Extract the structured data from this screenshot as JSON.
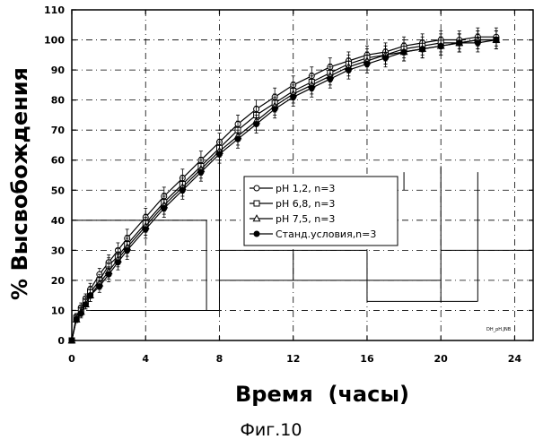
{
  "chart_data": {
    "type": "line",
    "title": "",
    "xlabel": "Время  (часы)",
    "ylabel": "% Высвобождения",
    "caption": "Фиг.10",
    "corner_note": "DH_pH.JNB",
    "xlim": [
      0,
      25
    ],
    "ylim": [
      0,
      110
    ],
    "xticks": [
      0,
      4,
      8,
      12,
      16,
      20,
      24
    ],
    "yticks": [
      0,
      10,
      20,
      30,
      40,
      50,
      60,
      70,
      80,
      90,
      100,
      110
    ],
    "grid": true,
    "legend_position": "center-right",
    "series": [
      {
        "name": "pH 1,2, n=3",
        "marker": "circle-open",
        "x": [
          0,
          0.25,
          0.5,
          0.75,
          1,
          1.5,
          2,
          2.5,
          3,
          4,
          5,
          6,
          7,
          8,
          9,
          10,
          11,
          12,
          13,
          14,
          15,
          16,
          17,
          18,
          19,
          20,
          21,
          22,
          23
        ],
        "values": [
          0,
          8,
          11,
          14,
          17,
          22,
          26,
          30,
          34,
          41,
          48,
          54,
          60,
          66,
          72,
          77,
          81,
          85,
          88,
          91,
          93,
          95,
          96,
          98,
          99,
          100,
          100,
          101,
          101
        ],
        "errors": [
          0,
          1,
          1.5,
          1.5,
          2,
          2,
          2.5,
          2.5,
          3,
          3,
          3,
          3,
          3,
          3,
          3,
          3,
          3,
          3,
          3,
          3,
          3,
          3,
          3,
          3,
          3,
          3,
          3,
          3,
          3
        ]
      },
      {
        "name": "pH 6,8, n=3",
        "marker": "square-open",
        "x": [
          0,
          0.25,
          0.5,
          0.75,
          1,
          1.5,
          2,
          2.5,
          3,
          4,
          5,
          6,
          7,
          8,
          9,
          10,
          11,
          12,
          13,
          14,
          15,
          16,
          17,
          18,
          19,
          20,
          21,
          22,
          23
        ],
        "values": [
          0,
          7.5,
          10,
          13,
          16,
          20,
          25,
          28,
          32,
          39,
          46,
          52,
          58,
          64,
          70,
          75,
          79,
          83,
          86,
          89,
          92,
          94,
          95,
          97,
          98,
          99,
          99,
          100,
          100
        ],
        "errors": [
          0,
          1,
          1.5,
          1.5,
          2,
          2,
          2.5,
          2.5,
          3,
          3,
          3,
          3,
          3,
          3,
          3,
          3,
          3,
          3,
          3,
          3,
          3,
          3,
          3,
          3,
          3,
          3,
          3,
          3,
          3
        ]
      },
      {
        "name": "pH 7,5, n=3",
        "marker": "triangle-open",
        "x": [
          0,
          0.25,
          0.5,
          0.75,
          1,
          1.5,
          2,
          2.5,
          3,
          4,
          5,
          6,
          7,
          8,
          9,
          10,
          11,
          12,
          13,
          14,
          15,
          16,
          17,
          18,
          19,
          20,
          21,
          22,
          23
        ],
        "values": [
          0,
          7,
          9.5,
          12,
          15,
          19,
          23,
          27,
          31,
          38,
          45,
          51,
          57,
          63,
          68,
          73,
          78,
          82,
          85,
          88,
          91,
          93,
          95,
          96,
          97,
          98,
          99,
          100,
          100
        ],
        "errors": [
          0,
          1,
          1.5,
          1.5,
          2,
          2,
          2.5,
          2.5,
          3,
          3,
          3,
          3,
          3,
          3,
          3,
          3,
          3,
          3,
          3,
          3,
          3,
          3,
          3,
          3,
          3,
          3,
          3,
          3,
          3
        ]
      },
      {
        "name": "Станд.условия,n=3",
        "marker": "circle-filled",
        "x": [
          0,
          0.25,
          0.5,
          0.75,
          1,
          1.5,
          2,
          2.5,
          3,
          4,
          5,
          6,
          7,
          8,
          9,
          10,
          11,
          12,
          13,
          14,
          15,
          16,
          17,
          18,
          19,
          20,
          21,
          22,
          23
        ],
        "values": [
          0,
          7,
          9,
          12,
          15,
          18,
          22,
          26,
          30,
          37,
          44,
          50,
          56,
          62,
          67,
          72,
          77,
          81,
          84,
          87,
          90,
          92,
          94,
          96,
          97,
          98,
          99,
          99,
          100
        ],
        "errors": [
          0,
          1,
          1.5,
          1.5,
          2,
          2,
          2.5,
          2.5,
          3,
          3,
          3,
          3,
          3,
          3,
          3,
          3,
          3,
          3,
          3,
          3,
          3,
          3,
          3,
          3,
          3,
          3,
          3,
          3,
          3
        ]
      }
    ]
  }
}
